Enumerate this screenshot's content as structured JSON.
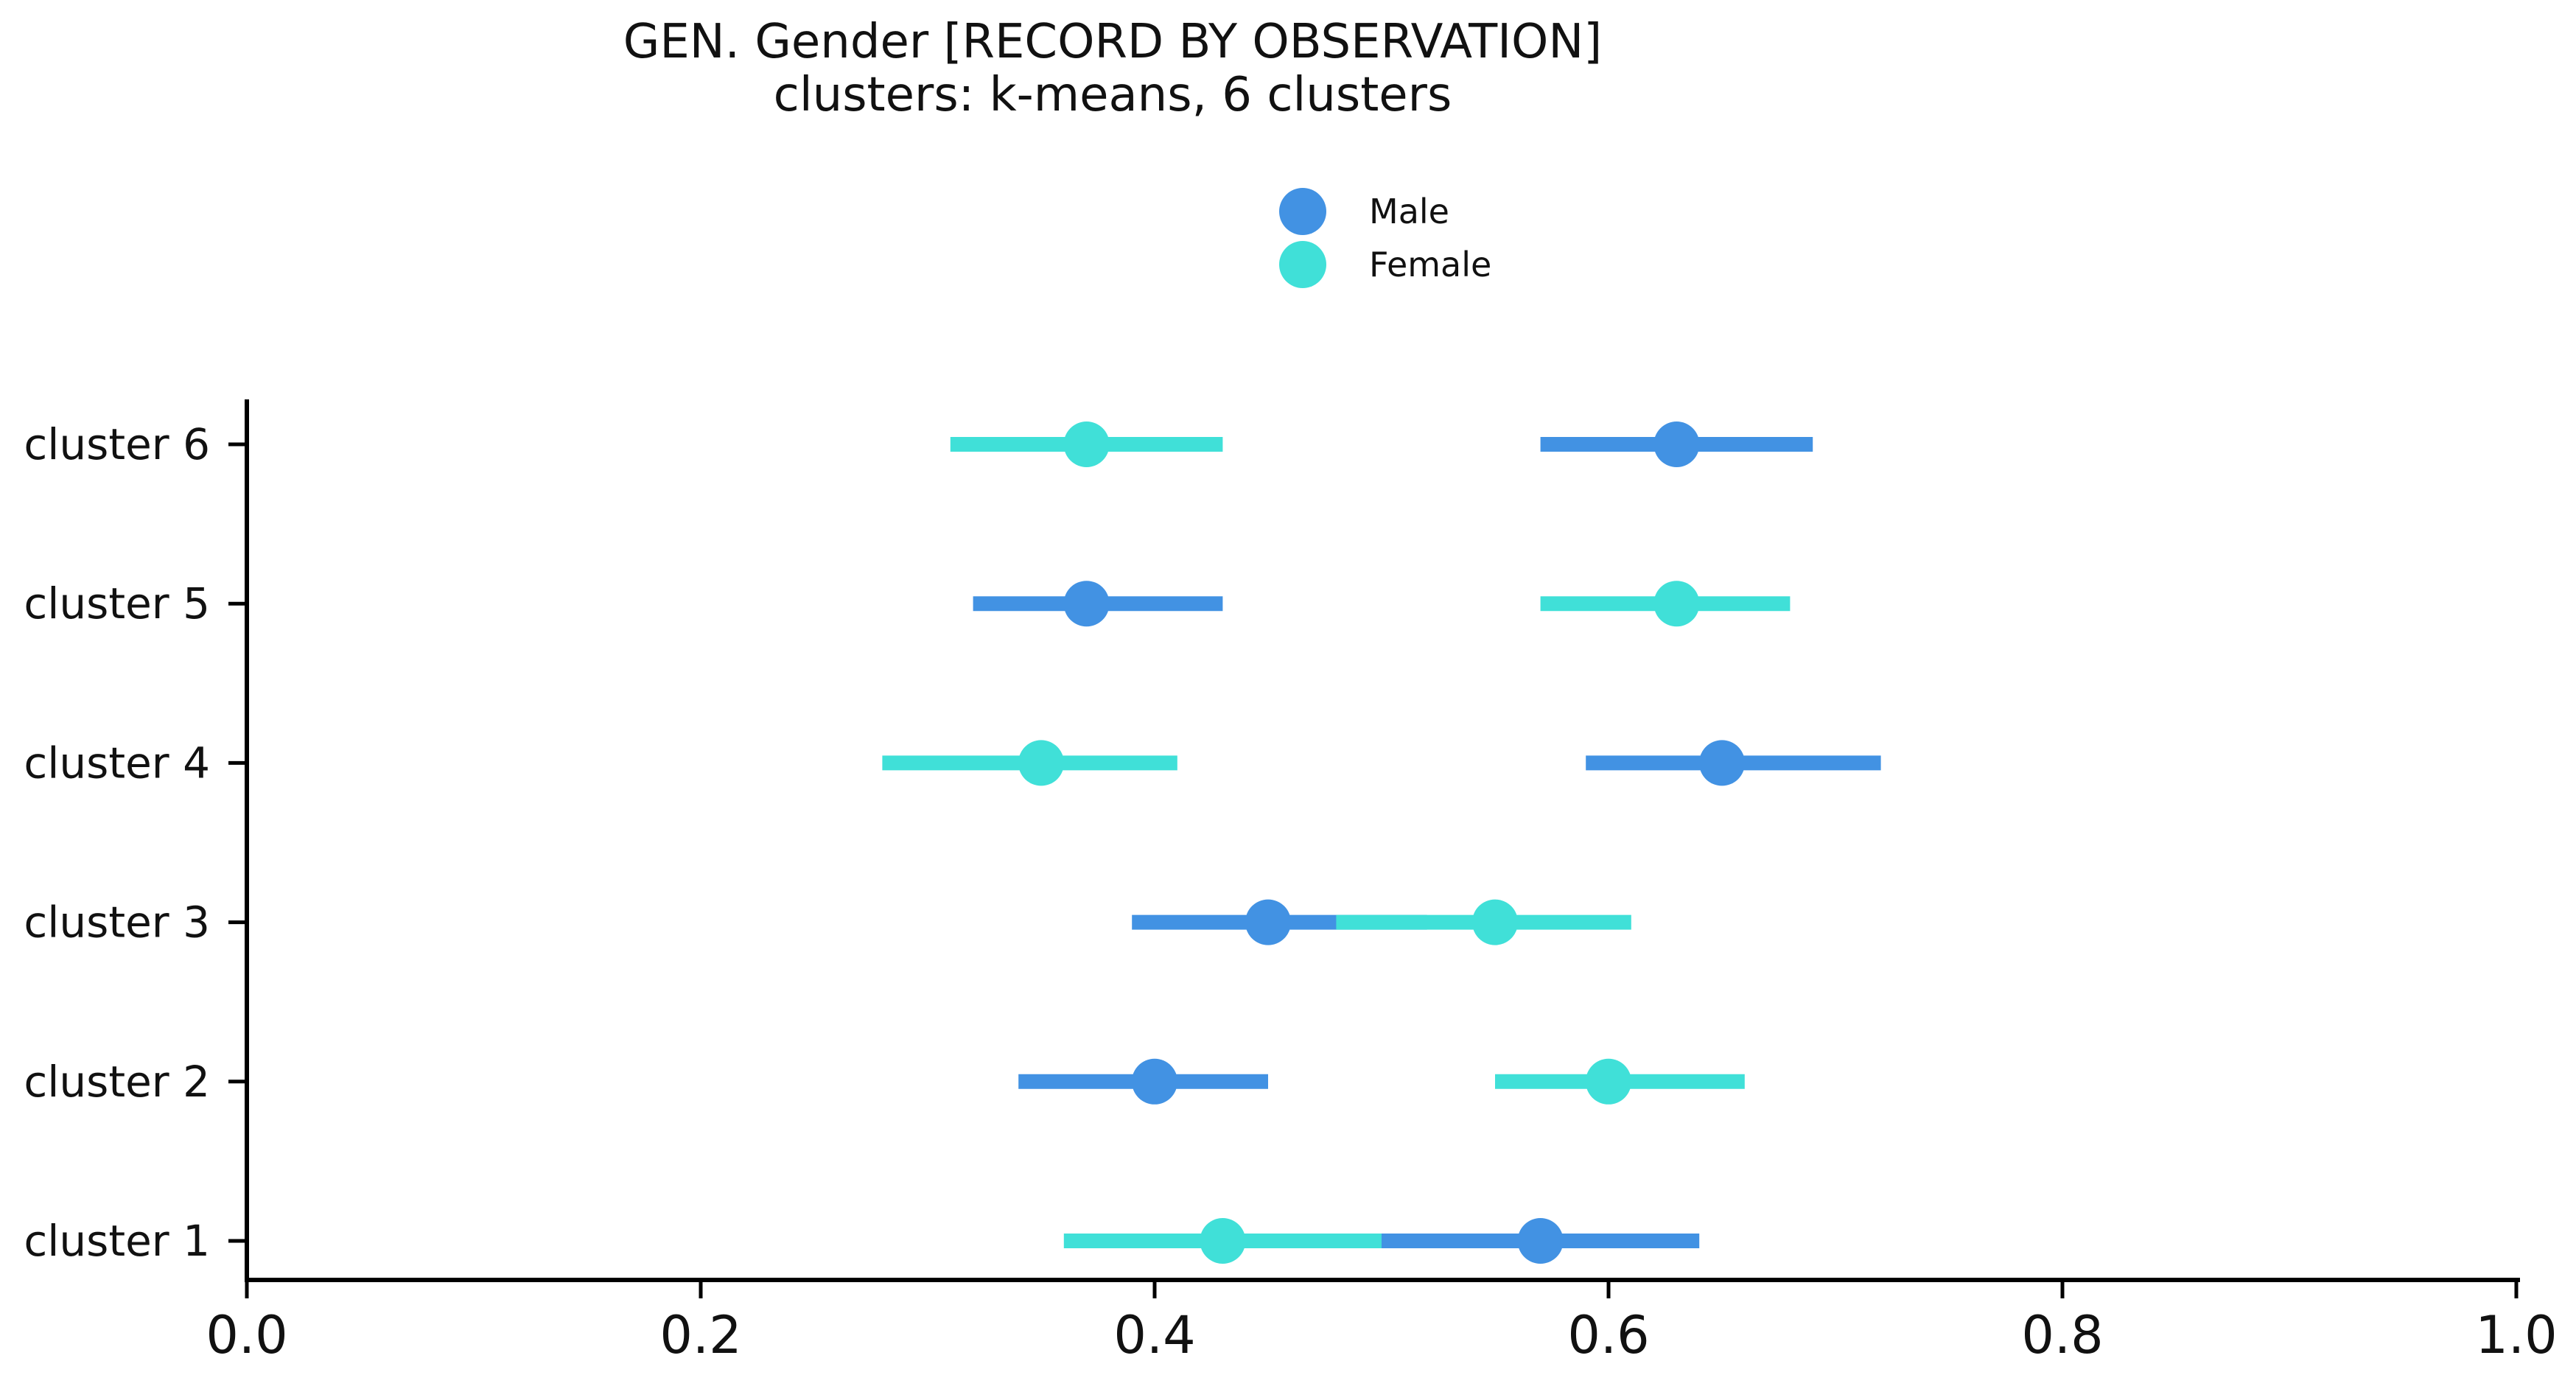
{
  "chart_data": {
    "type": "scatter",
    "title": "GEN. Gender [RECORD BY OBSERVATION]",
    "subtitle": "clusters: k-means, 6 clusters",
    "xlabel": "",
    "ylabel": "",
    "xlim": [
      0.0,
      1.0
    ],
    "x_ticks": [
      "0.0",
      "0.2",
      "0.4",
      "0.6",
      "0.8",
      "1.0"
    ],
    "x_tick_values": [
      0.0,
      0.2,
      0.4,
      0.6,
      0.8,
      1.0
    ],
    "categories": [
      "cluster 6",
      "cluster 5",
      "cluster 4",
      "cluster 3",
      "cluster 2",
      "cluster 1"
    ],
    "legend_position": "top-center",
    "grid": false,
    "series": [
      {
        "name": "Male",
        "color": "#4292e3",
        "points": [
          {
            "category": "cluster 6",
            "value": 0.63,
            "low": 0.57,
            "high": 0.69
          },
          {
            "category": "cluster 5",
            "value": 0.37,
            "low": 0.32,
            "high": 0.43
          },
          {
            "category": "cluster 4",
            "value": 0.65,
            "low": 0.59,
            "high": 0.72
          },
          {
            "category": "cluster 3",
            "value": 0.45,
            "low": 0.39,
            "high": 0.52
          },
          {
            "category": "cluster 2",
            "value": 0.4,
            "low": 0.34,
            "high": 0.45
          },
          {
            "category": "cluster 1",
            "value": 0.57,
            "low": 0.5,
            "high": 0.64
          }
        ]
      },
      {
        "name": "Female",
        "color": "#40e0d8",
        "points": [
          {
            "category": "cluster 6",
            "value": 0.37,
            "low": 0.31,
            "high": 0.43
          },
          {
            "category": "cluster 5",
            "value": 0.63,
            "low": 0.57,
            "high": 0.68
          },
          {
            "category": "cluster 4",
            "value": 0.35,
            "low": 0.28,
            "high": 0.41
          },
          {
            "category": "cluster 3",
            "value": 0.55,
            "low": 0.48,
            "high": 0.61
          },
          {
            "category": "cluster 2",
            "value": 0.6,
            "low": 0.55,
            "high": 0.66
          },
          {
            "category": "cluster 1",
            "value": 0.43,
            "low": 0.36,
            "high": 0.5
          }
        ]
      }
    ]
  }
}
